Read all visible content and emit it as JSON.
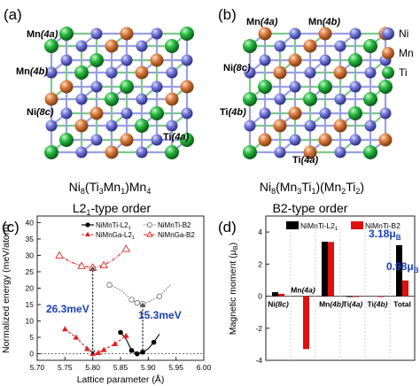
{
  "panels": {
    "a": {
      "letter": "(a)",
      "labels": [
        "Mn",
        "(4a)",
        "Mn",
        "(4b)",
        "Ni",
        "(8c)",
        "Ti",
        "(4a)"
      ],
      "formula": [
        "Ni",
        "8",
        "(Ti",
        "3",
        "Mn",
        "1",
        ")Mn",
        "4"
      ],
      "order": [
        "L2",
        "1",
        "-type order"
      ]
    },
    "b": {
      "letter": "(b)",
      "labels": [
        "Mn",
        "(4a)",
        "Mn",
        "(4b)",
        "Ni",
        "(8c)",
        "Ti",
        "(4b)",
        "Ti",
        "(4a)"
      ],
      "formula": [
        "Ni",
        "8",
        "(Mn",
        "3",
        "Ti",
        "1",
        ")(Mn",
        "2",
        "Ti",
        "2",
        ")"
      ],
      "order": "B2-type order"
    },
    "c": {
      "letter": "(c)"
    },
    "d": {
      "letter": "(d)"
    }
  },
  "legend_atoms": [
    {
      "name": "Ni",
      "color": "#6c6fd1"
    },
    {
      "name": "Mn",
      "color": "#d97a3c"
    },
    {
      "name": "Ti",
      "color": "#22b33a"
    }
  ],
  "chart_data": [
    {
      "type": "scatter",
      "xlabel": "Lattice parameter (Å)",
      "ylabel": "Normalized energy (meV/atom)",
      "xlim": [
        5.7,
        6.0
      ],
      "ylim": [
        -2,
        42
      ],
      "xticks": [
        "5.70",
        "5.75",
        "5.80",
        "5.85",
        "5.90",
        "5.95",
        "6.00"
      ],
      "yticks": [
        "0",
        "5",
        "10",
        "15",
        "20",
        "25",
        "30",
        "35",
        "40"
      ],
      "legend": "top",
      "legend_entries": [
        {
          "label": [
            "NiMnTi-L2",
            "1"
          ],
          "color": "#000000",
          "marker": "filled-circle",
          "line": "solid"
        },
        {
          "label": [
            "NiMnTi-B2"
          ],
          "color": "#777777",
          "marker": "open-circle",
          "line": "dotted"
        },
        {
          "label": [
            "NiMnGa-L2",
            "1"
          ],
          "color": "#e02020",
          "marker": "filled-triangle",
          "line": "dashed"
        },
        {
          "label": [
            "NiMnGa-B2"
          ],
          "color": "#e02020",
          "marker": "open-triangle",
          "line": "dashdot"
        }
      ],
      "series": [
        {
          "name": "NiMnTi-L21",
          "x": [
            5.85,
            5.86,
            5.87,
            5.88,
            5.89,
            5.9,
            5.91,
            5.92
          ],
          "y": [
            6.5,
            4.5,
            1.0,
            0.0,
            0.5,
            1.5,
            3.5,
            6.0
          ]
        },
        {
          "name": "NiMnTi-B2",
          "x": [
            5.83,
            5.85,
            5.87,
            5.88,
            5.89,
            5.9,
            5.92,
            5.94
          ],
          "y": [
            21.0,
            19.5,
            16.5,
            15.5,
            15.2,
            15.8,
            17.5,
            21.0
          ]
        },
        {
          "name": "NiMnGa-L21",
          "x": [
            5.75,
            5.77,
            5.79,
            5.8,
            5.81,
            5.82,
            5.84,
            5.86
          ],
          "y": [
            7.5,
            5.0,
            1.5,
            0.0,
            0.3,
            1.2,
            3.0,
            5.5
          ]
        },
        {
          "name": "NiMnGa-B2",
          "x": [
            5.74,
            5.76,
            5.78,
            5.8,
            5.82,
            5.84,
            5.86
          ],
          "y": [
            30.0,
            28.0,
            26.8,
            26.3,
            27.0,
            29.0,
            32.0
          ]
        }
      ],
      "annotations": [
        {
          "text": "26.3meV",
          "color": "#1a3fb8"
        },
        {
          "text": "15.3meV",
          "color": "#1a3fb8"
        }
      ]
    },
    {
      "type": "bar",
      "ylabel": [
        "Magnetic moment (μ",
        "B",
        ")"
      ],
      "ylim": [
        -4,
        5
      ],
      "yticks": [
        "-4",
        "-2",
        "0",
        "2",
        "4"
      ],
      "categories": [
        [
          "Ni",
          "(8c)"
        ],
        [
          "Mn",
          "(4a)"
        ],
        [
          "Mn",
          "(4b)"
        ],
        [
          "Ti",
          "(4a)"
        ],
        [
          "Ti",
          "(4b)"
        ],
        [
          "Total"
        ]
      ],
      "legend": "top",
      "legend_entries": [
        {
          "label": [
            "NiMnTi-L2",
            "1"
          ],
          "color": "#000000"
        },
        {
          "label": [
            "NiMnTi-B2"
          ],
          "color": "#e01010"
        }
      ],
      "series": [
        {
          "name": "NiMnTi-L21",
          "color": "#000000",
          "values": [
            0.25,
            null,
            3.4,
            -0.05,
            null,
            3.18
          ]
        },
        {
          "name": "NiMnTi-B2",
          "color": "#e01010",
          "values": [
            0.15,
            -3.3,
            3.38,
            -0.05,
            -0.05,
            0.98
          ]
        }
      ],
      "annotations": [
        {
          "text": [
            "3.18μ",
            "B"
          ],
          "color": "#1a3fb8"
        },
        {
          "text": [
            "0.98μ",
            "B"
          ],
          "color": "#1a3fb8"
        }
      ]
    }
  ]
}
